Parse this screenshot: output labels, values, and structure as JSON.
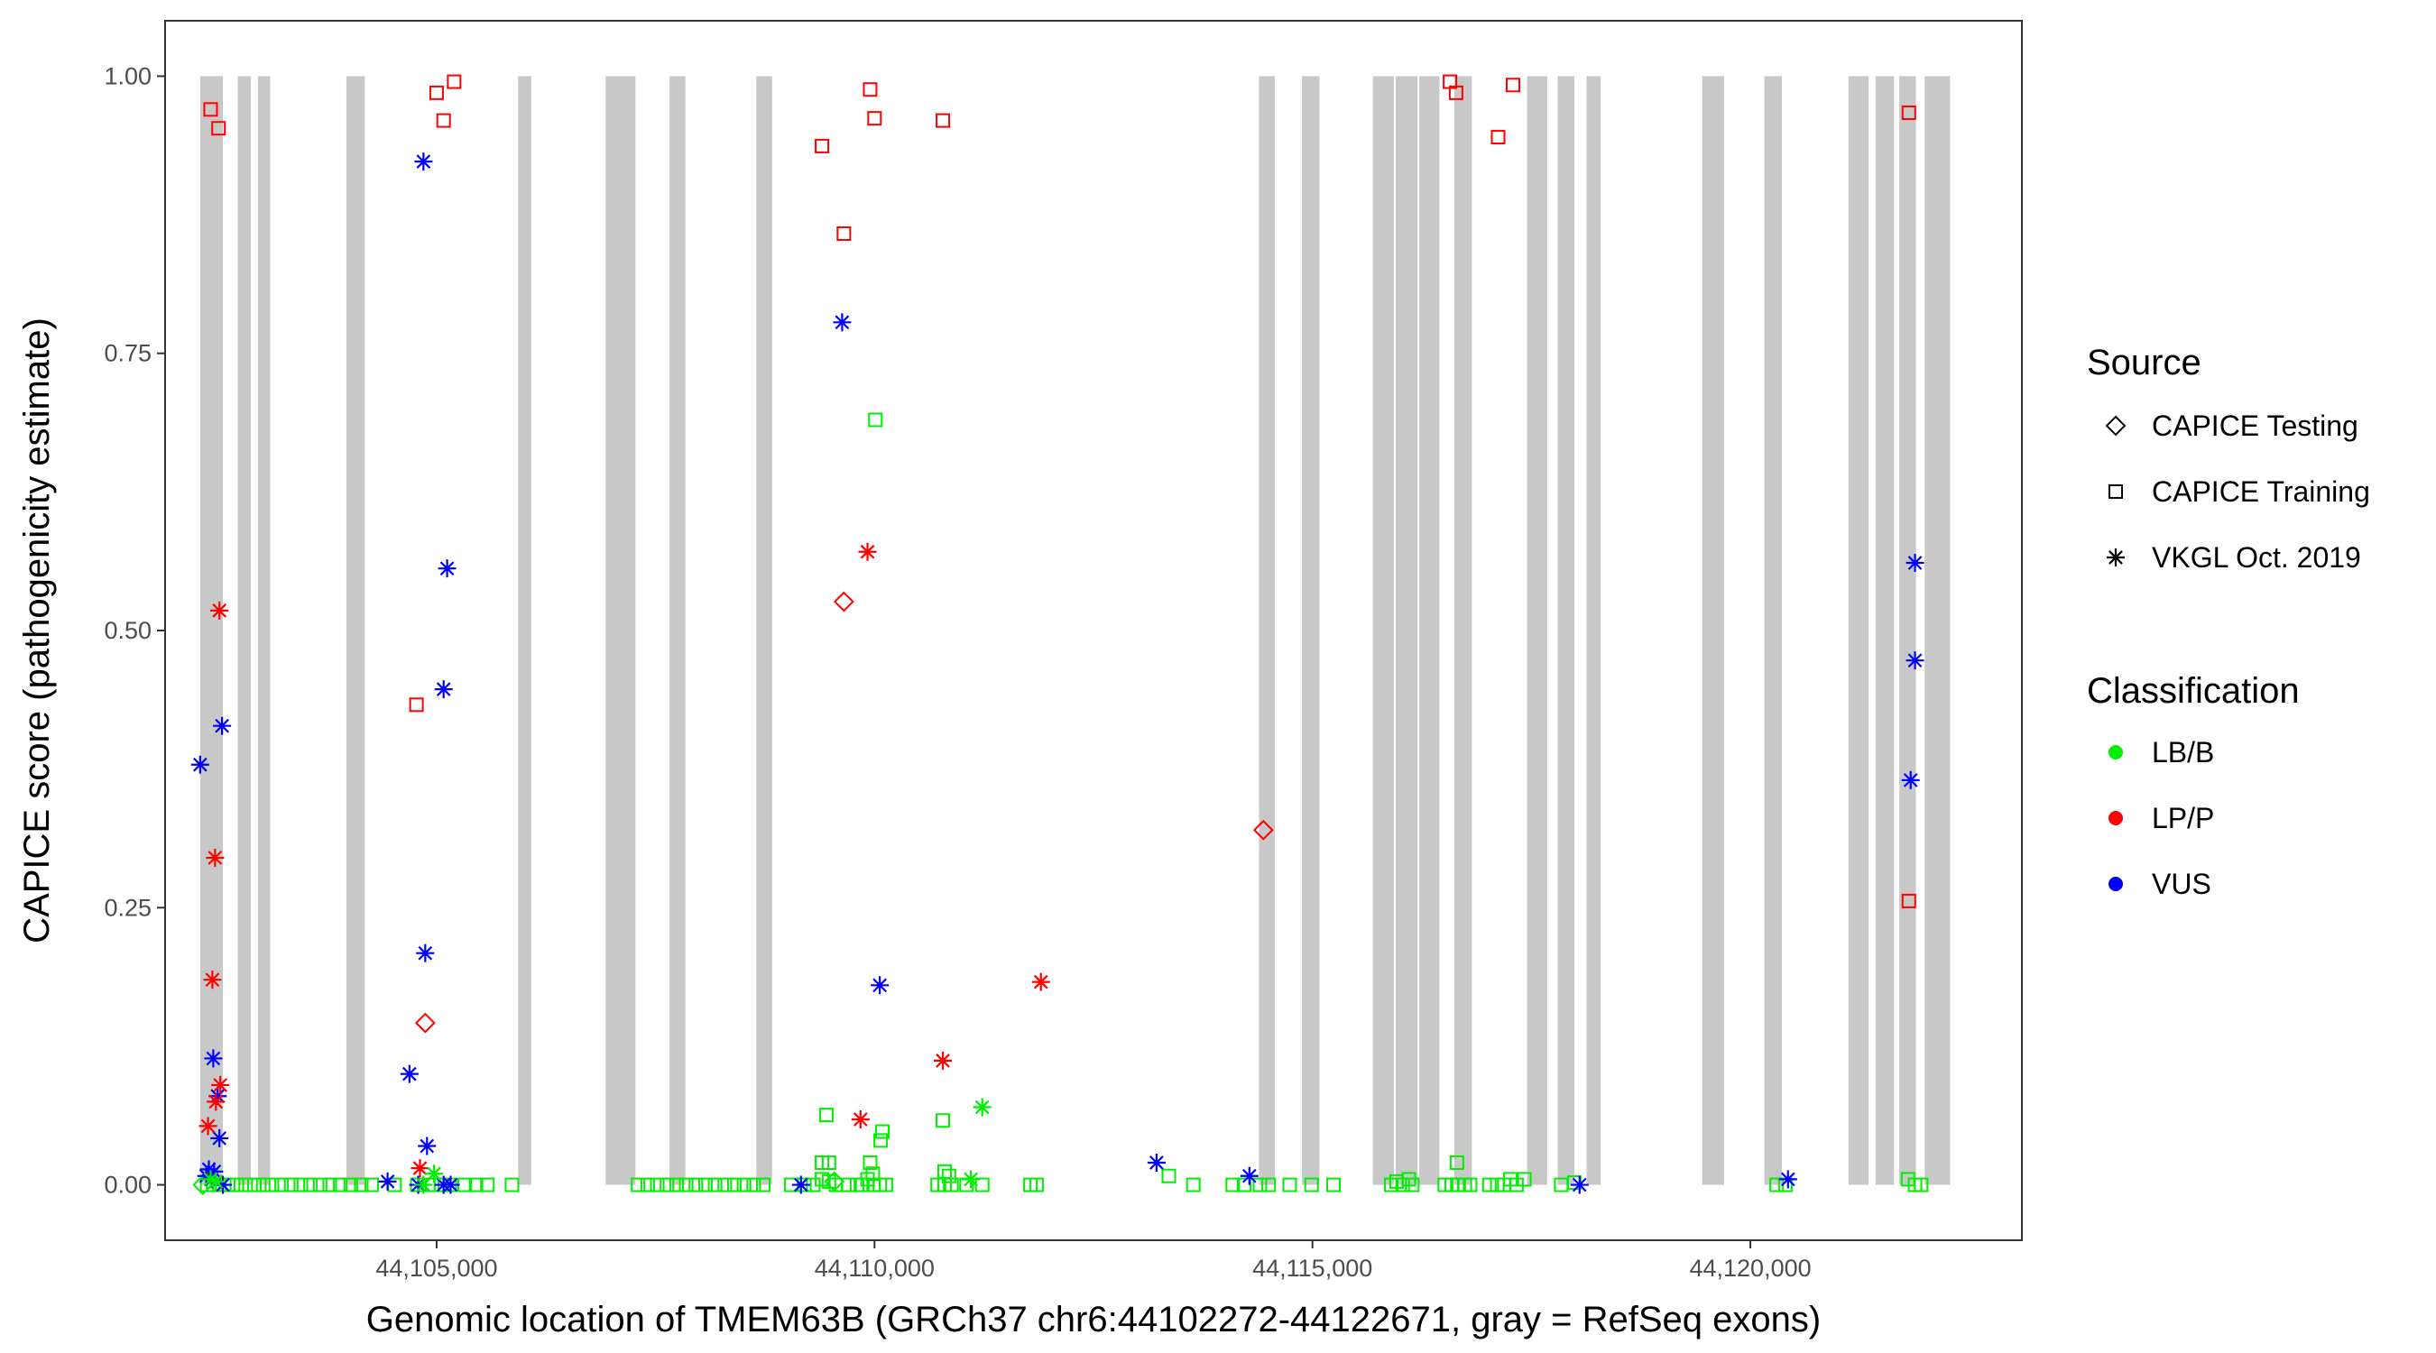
{
  "chart_data": {
    "type": "scatter",
    "title": "",
    "xlabel": "Genomic location of TMEM63B (GRCh37 chr6:44102272-44122671, gray = RefSeq exons)",
    "ylabel": "CAPICE score (pathogenicity estimate)",
    "xlim": [
      101900,
      123100
    ],
    "ylim": [
      -0.05,
      1.05
    ],
    "x_ticks": [
      105000,
      110000,
      115000,
      120000
    ],
    "x_tick_labels": [
      "44,105,000",
      "44,110,000",
      "44,115,000",
      "44,120,000"
    ],
    "y_ticks": [
      0.0,
      0.25,
      0.5,
      0.75,
      1.0
    ],
    "y_tick_labels": [
      "0.00",
      "0.25",
      "0.50",
      "0.75",
      "1.00"
    ],
    "x_values_note": "x values are genomic positions offset by 44,000,000 (labels show 44,1xx,xxx)",
    "grid": false,
    "legend_position": "right",
    "exons": [
      [
        102300,
        102560
      ],
      [
        102730,
        102880
      ],
      [
        102960,
        103100
      ],
      [
        103970,
        104180
      ],
      [
        105930,
        106080
      ],
      [
        106930,
        107270
      ],
      [
        107660,
        107840
      ],
      [
        108650,
        108830
      ],
      [
        114390,
        114570
      ],
      [
        114880,
        115080
      ],
      [
        115690,
        115930
      ],
      [
        115950,
        116200
      ],
      [
        116220,
        116450
      ],
      [
        116620,
        116820
      ],
      [
        117450,
        117680
      ],
      [
        117800,
        117990
      ],
      [
        118130,
        118290
      ],
      [
        119450,
        119700
      ],
      [
        120160,
        120360
      ],
      [
        121120,
        121350
      ],
      [
        121430,
        121640
      ],
      [
        121700,
        121890
      ],
      [
        121990,
        122280
      ]
    ],
    "legend": {
      "source_title": "Source",
      "source_items": [
        {
          "label": "CAPICE Testing",
          "shape": "diamond"
        },
        {
          "label": "CAPICE Training",
          "shape": "square"
        },
        {
          "label": "VKGL Oct. 2019",
          "shape": "asterisk"
        }
      ],
      "class_title": "Classification",
      "class_items": [
        {
          "label": "LB/B",
          "color": "#00ee00"
        },
        {
          "label": "LP/P",
          "color": "#ff0000"
        },
        {
          "label": "VUS",
          "color": "#0000ff"
        }
      ]
    },
    "series": [
      {
        "name": "CAPICE Training",
        "shape": "square",
        "color": "#ff0000",
        "points": [
          [
            102420,
            0.97
          ],
          [
            102510,
            0.953
          ],
          [
            105000,
            0.985
          ],
          [
            105080,
            0.96
          ],
          [
            105200,
            0.995
          ],
          [
            104770,
            0.433
          ],
          [
            109400,
            0.937
          ],
          [
            109650,
            0.858
          ],
          [
            109950,
            0.988
          ],
          [
            110000,
            0.962
          ],
          [
            110780,
            0.96
          ],
          [
            116570,
            0.995
          ],
          [
            116640,
            0.985
          ],
          [
            117120,
            0.945
          ],
          [
            117290,
            0.992
          ],
          [
            121810,
            0.967
          ],
          [
            121810,
            0.256
          ]
        ]
      },
      {
        "name": "CAPICE Training",
        "shape": "square",
        "color": "#00ee00",
        "points": [
          [
            110010,
            0.69
          ],
          [
            109450,
            0.063
          ],
          [
            110780,
            0.058
          ],
          [
            110090,
            0.048
          ],
          [
            110070,
            0.04
          ],
          [
            109400,
            0.02
          ],
          [
            109480,
            0.02
          ],
          [
            109950,
            0.02
          ],
          [
            109980,
            0.01
          ],
          [
            116650,
            0.02
          ],
          [
            110800,
            0.012
          ],
          [
            110850,
            0.008
          ],
          [
            102380,
            0.0
          ],
          [
            102450,
            0.0
          ],
          [
            102520,
            0.0
          ],
          [
            102620,
            0.0
          ],
          [
            102720,
            0.0
          ],
          [
            102820,
            0.0
          ],
          [
            102920,
            0.0
          ],
          [
            103020,
            0.0
          ],
          [
            103120,
            0.0
          ],
          [
            103230,
            0.0
          ],
          [
            103340,
            0.0
          ],
          [
            103450,
            0.0
          ],
          [
            103560,
            0.0
          ],
          [
            103670,
            0.0
          ],
          [
            103780,
            0.0
          ],
          [
            103900,
            0.0
          ],
          [
            104020,
            0.0
          ],
          [
            104140,
            0.0
          ],
          [
            104260,
            0.0
          ],
          [
            104520,
            0.0
          ],
          [
            104780,
            0.0
          ],
          [
            104950,
            0.0
          ],
          [
            105050,
            0.0
          ],
          [
            105150,
            0.0
          ],
          [
            105320,
            0.0
          ],
          [
            105450,
            0.0
          ],
          [
            105580,
            0.0
          ],
          [
            105860,
            0.0
          ],
          [
            107300,
            0.0
          ],
          [
            107410,
            0.0
          ],
          [
            107520,
            0.0
          ],
          [
            107630,
            0.0
          ],
          [
            107740,
            0.0
          ],
          [
            107850,
            0.0
          ],
          [
            107960,
            0.0
          ],
          [
            108070,
            0.0
          ],
          [
            108180,
            0.0
          ],
          [
            108290,
            0.0
          ],
          [
            108400,
            0.0
          ],
          [
            108510,
            0.0
          ],
          [
            108620,
            0.0
          ],
          [
            108730,
            0.0
          ],
          [
            109050,
            0.0
          ],
          [
            109200,
            0.0
          ],
          [
            109300,
            0.0
          ],
          [
            109400,
            0.005
          ],
          [
            109480,
            0.003
          ],
          [
            109560,
            0.0
          ],
          [
            109700,
            0.0
          ],
          [
            109800,
            0.0
          ],
          [
            109860,
            0.0
          ],
          [
            109920,
            0.005
          ],
          [
            109990,
            0.0
          ],
          [
            110060,
            0.0
          ],
          [
            110130,
            0.0
          ],
          [
            110720,
            0.0
          ],
          [
            110800,
            0.0
          ],
          [
            110880,
            0.0
          ],
          [
            111050,
            0.0
          ],
          [
            111230,
            0.0
          ],
          [
            111780,
            0.0
          ],
          [
            111850,
            0.0
          ],
          [
            113360,
            0.008
          ],
          [
            113640,
            0.0
          ],
          [
            114090,
            0.0
          ],
          [
            114220,
            0.0
          ],
          [
            114400,
            0.0
          ],
          [
            114500,
            0.0
          ],
          [
            114740,
            0.0
          ],
          [
            114990,
            0.0
          ],
          [
            115240,
            0.0
          ],
          [
            115900,
            0.0
          ],
          [
            115960,
            0.003
          ],
          [
            116030,
            0.0
          ],
          [
            116100,
            0.005
          ],
          [
            116140,
            0.0
          ],
          [
            116510,
            0.0
          ],
          [
            116590,
            0.0
          ],
          [
            116670,
            0.0
          ],
          [
            116740,
            0.0
          ],
          [
            116800,
            0.0
          ],
          [
            117020,
            0.0
          ],
          [
            117110,
            0.0
          ],
          [
            117190,
            0.0
          ],
          [
            117260,
            0.005
          ],
          [
            117330,
            0.0
          ],
          [
            117420,
            0.005
          ],
          [
            117840,
            0.0
          ],
          [
            117990,
            0.002
          ],
          [
            120300,
            0.0
          ],
          [
            120400,
            0.0
          ],
          [
            121800,
            0.005
          ],
          [
            121880,
            0.0
          ],
          [
            121950,
            0.0
          ]
        ]
      },
      {
        "name": "CAPICE Testing",
        "shape": "diamond",
        "color": "#ff0000",
        "points": [
          [
            109650,
            0.526
          ],
          [
            104870,
            0.146
          ],
          [
            114440,
            0.32
          ]
        ]
      },
      {
        "name": "CAPICE Testing",
        "shape": "diamond",
        "color": "#00ee00",
        "points": [
          [
            102330,
            0.0
          ],
          [
            109540,
            0.003
          ]
        ]
      },
      {
        "name": "VKGL Oct. 2019",
        "shape": "asterisk",
        "color": "#0000ff",
        "points": [
          [
            104850,
            0.923
          ],
          [
            109630,
            0.778
          ],
          [
            105120,
            0.556
          ],
          [
            105080,
            0.447
          ],
          [
            102550,
            0.414
          ],
          [
            102300,
            0.379
          ],
          [
            104870,
            0.209
          ],
          [
            110060,
            0.18
          ],
          [
            102450,
            0.114
          ],
          [
            102500,
            0.08
          ],
          [
            104690,
            0.1
          ],
          [
            102520,
            0.042
          ],
          [
            104890,
            0.035
          ],
          [
            102400,
            0.014
          ],
          [
            102460,
            0.012
          ],
          [
            102370,
            0.008
          ],
          [
            102430,
            0.005
          ],
          [
            102560,
            0.0
          ],
          [
            104440,
            0.003
          ],
          [
            104790,
            0.0
          ],
          [
            105080,
            0.0
          ],
          [
            105160,
            0.0
          ],
          [
            109160,
            0.0
          ],
          [
            113220,
            0.02
          ],
          [
            114280,
            0.008
          ],
          [
            118050,
            0.0
          ],
          [
            120430,
            0.005
          ],
          [
            121880,
            0.561
          ],
          [
            121880,
            0.473
          ],
          [
            121830,
            0.365
          ]
        ]
      },
      {
        "name": "VKGL Oct. 2019",
        "shape": "asterisk",
        "color": "#ff0000",
        "points": [
          [
            102520,
            0.518
          ],
          [
            102470,
            0.295
          ],
          [
            102440,
            0.185
          ],
          [
            102530,
            0.09
          ],
          [
            102480,
            0.075
          ],
          [
            102390,
            0.053
          ],
          [
            104810,
            0.015
          ],
          [
            109920,
            0.571
          ],
          [
            109840,
            0.059
          ],
          [
            110780,
            0.112
          ],
          [
            111900,
            0.183
          ]
        ]
      },
      {
        "name": "VKGL Oct. 2019",
        "shape": "asterisk",
        "color": "#00ee00",
        "points": [
          [
            111230,
            0.07
          ],
          [
            102420,
            0.005
          ],
          [
            102480,
            0.003
          ],
          [
            104970,
            0.01
          ],
          [
            104850,
            0.0
          ],
          [
            111100,
            0.005
          ]
        ]
      }
    ]
  }
}
